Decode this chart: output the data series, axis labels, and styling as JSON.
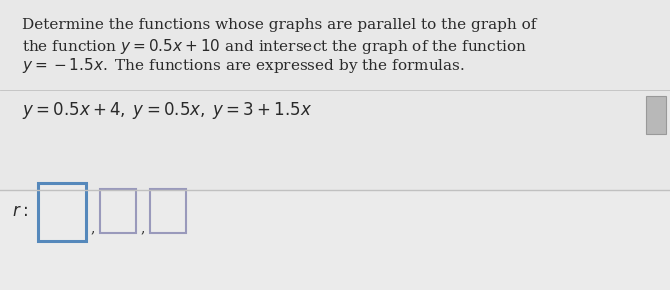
{
  "bg_top": "#e8e8e8",
  "bg_bottom": "#ebebeb",
  "separator_color": "#c0c0c0",
  "text_color": "#2a2a2a",
  "title_fontsize": 11.0,
  "formula_fontsize": 12.0,
  "answer_fontsize": 12.0,
  "box1_color": "#5588bb",
  "box23_color": "#9999bb",
  "box_face": "#f5f5f5",
  "corner_icon_color": "#aaaaaa"
}
